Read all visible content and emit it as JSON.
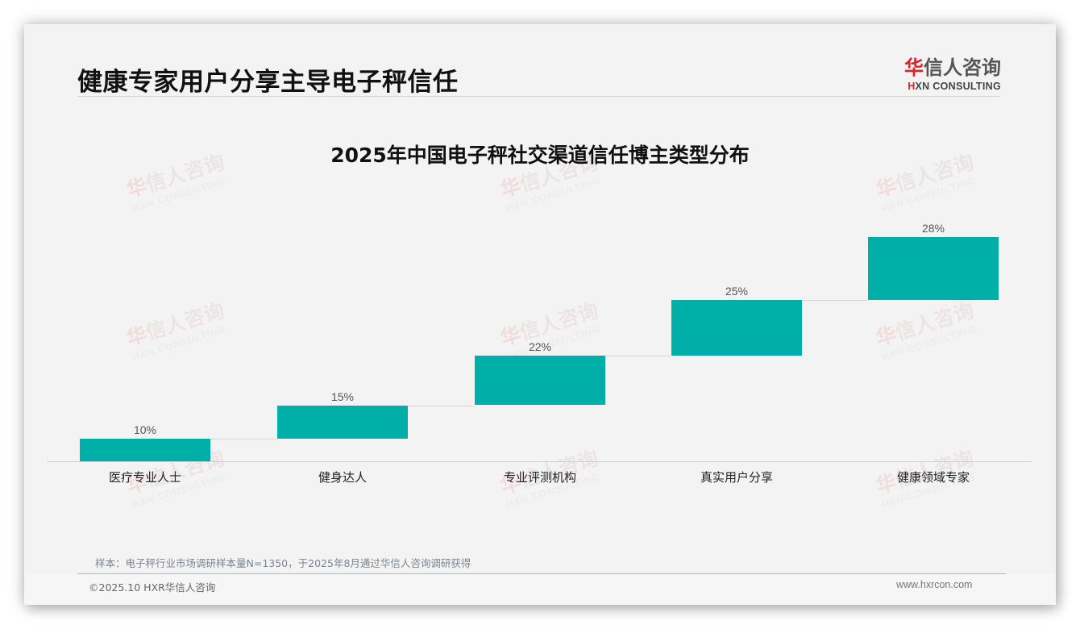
{
  "header": {
    "page_title": "健康专家用户分享主导电子秤信任",
    "logo": {
      "cn_first": "华",
      "cn_rest": "信人咨询",
      "en_mark": "H",
      "en_rest": "XN CONSULTING"
    }
  },
  "watermark": {
    "cn_first": "华",
    "cn_rest": "信人咨询",
    "en": "HXN CONSULTING"
  },
  "chart_data": {
    "type": "bar",
    "subtype": "waterfall",
    "title": "2025年中国电子秤社交渠道信任博主类型分布",
    "categories": [
      "医疗专业人士",
      "健身达人",
      "专业评测机构",
      "真实用户分享",
      "健康领域专家"
    ],
    "values": [
      10,
      15,
      22,
      25,
      28
    ],
    "value_labels": [
      "10%",
      "15%",
      "22%",
      "25%",
      "28%"
    ],
    "unit": "%",
    "xlabel": "",
    "ylabel": "",
    "ylim": [
      0,
      100
    ],
    "grid": false,
    "legend": null,
    "bar_color": "#00b0a8"
  },
  "footer": {
    "note": "样本：电子秤行业市场调研样本量N=1350，于2025年8月通过华信人咨询调研获得",
    "copyright": "©2025.10 HXR华信人咨询",
    "website": "www.hxrcon.com"
  }
}
